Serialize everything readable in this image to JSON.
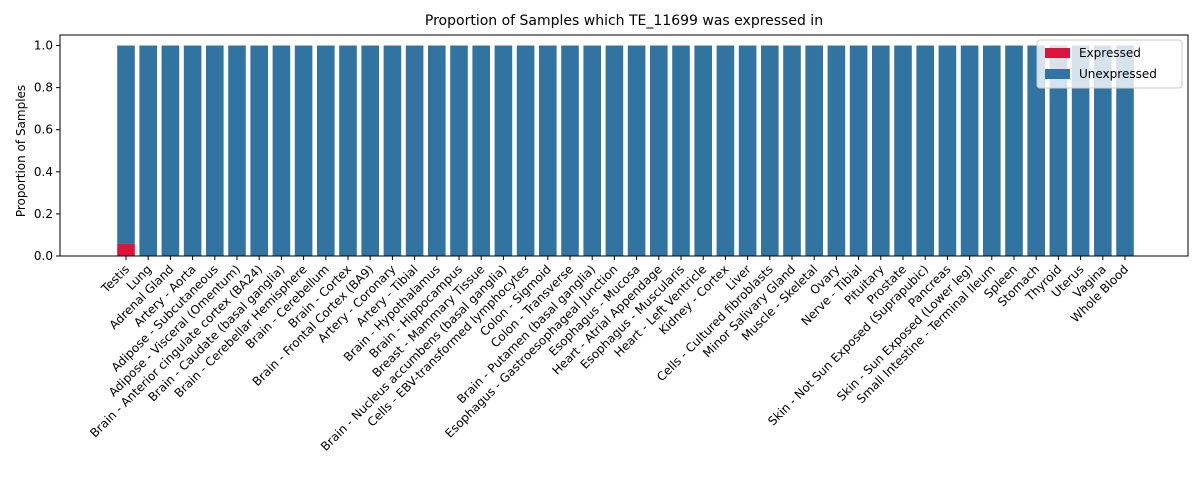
{
  "chart_data": {
    "type": "bar",
    "stacked": true,
    "title": "Proportion of Samples which TE_11699 was expressed in",
    "xlabel": "",
    "ylabel": "Proportion of Samples",
    "ylim": [
      0,
      1.05
    ],
    "yticks": [
      "0.0",
      "0.2",
      "0.4",
      "0.6",
      "0.8",
      "1.0"
    ],
    "grid": false,
    "legend_position": "top-right",
    "categories": [
      "Testis",
      "Lung",
      "Adrenal Gland",
      "Artery - Aorta",
      "Adipose - Subcutaneous",
      "Adipose - Visceral (Omentum)",
      "Brain - Anterior cingulate cortex (BA24)",
      "Brain - Caudate (basal ganglia)",
      "Brain - Cerebellar Hemisphere",
      "Brain - Cerebellum",
      "Brain - Cortex",
      "Brain - Frontal Cortex (BA9)",
      "Artery - Coronary",
      "Artery - Tibial",
      "Brain - Hypothalamus",
      "Brain - Hippocampus",
      "Breast - Mammary Tissue",
      "Brain - Nucleus accumbens (basal ganglia)",
      "Cells - EBV-transformed lymphocytes",
      "Colon - Sigmoid",
      "Colon - Transverse",
      "Brain - Putamen (basal ganglia)",
      "Esophagus - Gastroesophageal Junction",
      "Esophagus - Mucosa",
      "Heart - Atrial Appendage",
      "Esophagus - Muscularis",
      "Heart - Left Ventricle",
      "Kidney - Cortex",
      "Liver",
      "Cells - Cultured fibroblasts",
      "Minor Salivary Gland",
      "Muscle - Skeletal",
      "Ovary",
      "Nerve - Tibial",
      "Pituitary",
      "Prostate",
      "Skin - Not Sun Exposed (Suprapubic)",
      "Pancreas",
      "Skin - Sun Exposed (Lower leg)",
      "Small Intestine - Terminal Ileum",
      "Spleen",
      "Stomach",
      "Thyroid",
      "Uterus",
      "Vagina",
      "Whole Blood"
    ],
    "series": [
      {
        "name": "Expressed",
        "color": "#dc143c",
        "values": [
          0.06,
          0,
          0,
          0,
          0,
          0,
          0,
          0,
          0,
          0,
          0,
          0,
          0,
          0,
          0,
          0,
          0,
          0,
          0,
          0,
          0,
          0,
          0,
          0,
          0,
          0,
          0,
          0,
          0,
          0,
          0,
          0,
          0,
          0,
          0,
          0,
          0,
          0,
          0,
          0,
          0,
          0,
          0,
          0,
          0,
          0
        ]
      },
      {
        "name": "Unexpressed",
        "color": "#3274a1",
        "values": [
          0.94,
          1,
          1,
          1,
          1,
          1,
          1,
          1,
          1,
          1,
          1,
          1,
          1,
          1,
          1,
          1,
          1,
          1,
          1,
          1,
          1,
          1,
          1,
          1,
          1,
          1,
          1,
          1,
          1,
          1,
          1,
          1,
          1,
          1,
          1,
          1,
          1,
          1,
          1,
          1,
          1,
          1,
          1,
          1,
          1,
          1
        ]
      }
    ]
  }
}
